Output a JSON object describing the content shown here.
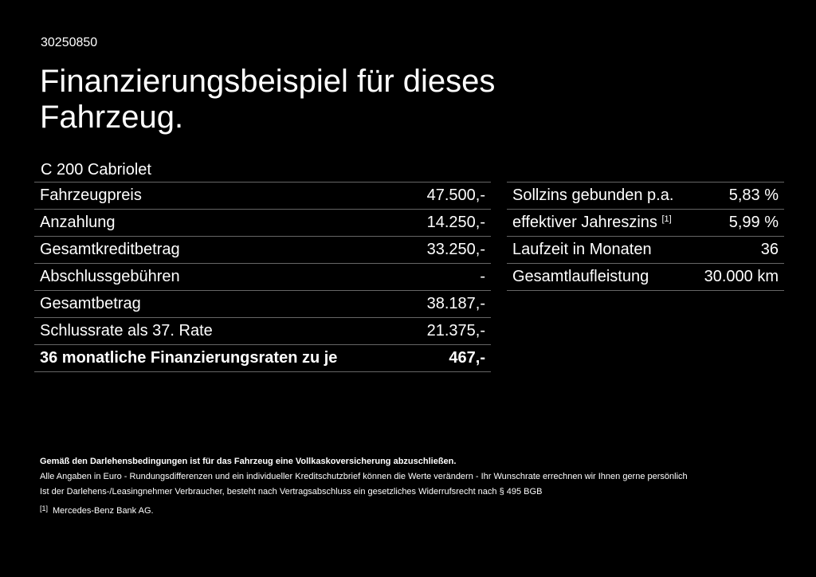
{
  "header": {
    "code": "30250850",
    "title": "Finanzierungsbeispiel für dieses Fahrzeug.",
    "model": "C 200 Cabriolet"
  },
  "left_table": [
    {
      "label": "Fahrzeugpreis",
      "value": "47.500,-"
    },
    {
      "label": "Anzahlung",
      "value": "14.250,-"
    },
    {
      "label": "Gesamtkreditbetrag",
      "value": "33.250,-"
    },
    {
      "label": "Abschlussgebühren",
      "value": "-"
    },
    {
      "label": "Gesamtbetrag",
      "value": "38.187,-"
    },
    {
      "label": "Schlussrate als 37. Rate",
      "value": "21.375,-"
    },
    {
      "label": "36 monatliche Finanzierungsraten zu je",
      "value": "467,-"
    }
  ],
  "right_table": [
    {
      "label": "Sollzins gebunden p.a.",
      "value": "5,83 %"
    },
    {
      "label": "effektiver Jahreszins",
      "sup": "[1]",
      "value": "5,99 %"
    },
    {
      "label": "Laufzeit in Monaten",
      "value": "36"
    },
    {
      "label": "Gesamtlaufleistung",
      "value": "30.000 km"
    }
  ],
  "notes": {
    "bold": "Gemäß den Darlehensbedingungen ist für das Fahrzeug eine Vollkaskoversicherung abzuschließen.",
    "line1": "Alle Angaben in Euro - Rundungsdifferenzen und ein individueller Kreditschutzbrief können die Werte verändern - Ihr Wunschrate errechnen wir Ihnen gerne persönlich",
    "line2": "Ist der Darlehens-/Leasingnehmer Verbraucher, besteht nach Vertragsabschluss ein gesetzliches Widerrufsrecht nach § 495 BGB",
    "footnote_marker": "[1]",
    "footnote_text": "Mercedes-Benz Bank AG."
  }
}
